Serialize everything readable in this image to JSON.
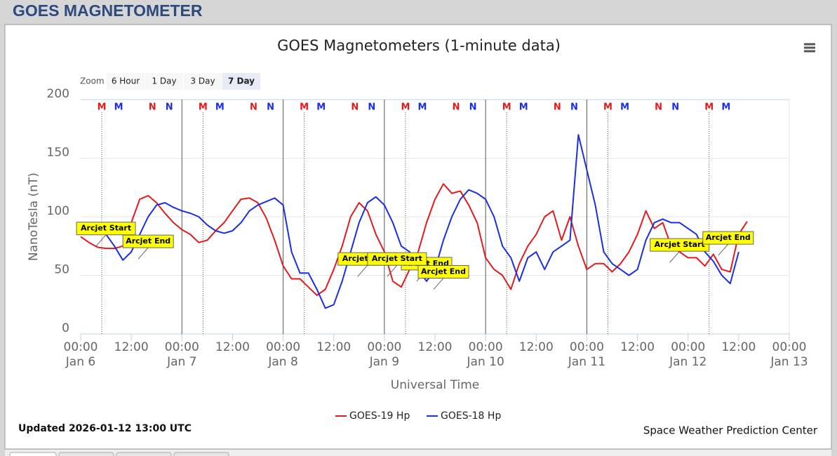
{
  "page": {
    "header": "GOES MAGNETOMETER",
    "zoom_label": "Zoom",
    "zoom_buttons": [
      "6 Hour",
      "1 Day",
      "3 Day",
      "7 Day"
    ],
    "zoom_selected": 3,
    "updated": "Updated 2026-01-12 13:00 UTC",
    "credit": "Space Weather Prediction Center"
  },
  "chart_data": {
    "type": "line",
    "title": "GOES Magnetometers (1-minute data)",
    "x_label": "Universal Time",
    "y_label": "NanoTesla (nT)",
    "xlim": [
      "Jan 6 00:00",
      "Jan 13 00:00"
    ],
    "xticks": [
      {
        "value": "Jan 6 00:00",
        "label": "00:00",
        "date": "Jan 6"
      },
      {
        "value": "Jan 6 12:00",
        "label": "12:00"
      },
      {
        "value": "Jan 7 00:00",
        "label": "00:00",
        "date": "Jan 7"
      },
      {
        "value": "Jan 7 12:00",
        "label": "12:00"
      },
      {
        "value": "Jan 8 00:00",
        "label": "00:00",
        "date": "Jan 8"
      },
      {
        "value": "Jan 8 12:00",
        "label": "12:00"
      },
      {
        "value": "Jan 9 00:00",
        "label": "00:00",
        "date": "Jan 9"
      },
      {
        "value": "Jan 9 12:00",
        "label": "12:00"
      },
      {
        "value": "Jan 10 00:00",
        "label": "00:00",
        "date": "Jan 10"
      },
      {
        "value": "Jan 10 12:00",
        "label": "12:00"
      },
      {
        "value": "Jan 11 00:00",
        "label": "00:00",
        "date": "Jan 11"
      },
      {
        "value": "Jan 11 12:00",
        "label": "12:00"
      },
      {
        "value": "Jan 12 00:00",
        "label": "00:00",
        "date": "Jan 12"
      },
      {
        "value": "Jan 12 12:00",
        "label": "12:00"
      },
      {
        "value": "Jan 13 00:00",
        "label": "00:00",
        "date": "Jan 13"
      }
    ],
    "ylim": [
      0,
      200
    ],
    "yticks": [
      0,
      50,
      100,
      150,
      200
    ],
    "grid": true,
    "plot_lines": [
      "Jan 7 00:00",
      "Jan 8 00:00",
      "Jan 9 00:00",
      "Jan 10 00:00",
      "Jan 11 00:00"
    ],
    "x": [
      "Jan 6 00:00",
      "Jan 6 02:00",
      "Jan 6 04:00",
      "Jan 6 06:00",
      "Jan 6 08:00",
      "Jan 6 10:00",
      "Jan 6 12:00",
      "Jan 6 14:00",
      "Jan 6 16:00",
      "Jan 6 18:00",
      "Jan 6 20:00",
      "Jan 6 22:00",
      "Jan 7 00:00",
      "Jan 7 02:00",
      "Jan 7 04:00",
      "Jan 7 06:00",
      "Jan 7 08:00",
      "Jan 7 10:00",
      "Jan 7 12:00",
      "Jan 7 14:00",
      "Jan 7 16:00",
      "Jan 7 18:00",
      "Jan 7 20:00",
      "Jan 7 22:00",
      "Jan 8 00:00",
      "Jan 8 02:00",
      "Jan 8 04:00",
      "Jan 8 06:00",
      "Jan 8 08:00",
      "Jan 8 10:00",
      "Jan 8 12:00",
      "Jan 8 14:00",
      "Jan 8 16:00",
      "Jan 8 18:00",
      "Jan 8 20:00",
      "Jan 8 22:00",
      "Jan 9 00:00",
      "Jan 9 02:00",
      "Jan 9 04:00",
      "Jan 9 06:00",
      "Jan 9 08:00",
      "Jan 9 10:00",
      "Jan 9 12:00",
      "Jan 9 14:00",
      "Jan 9 16:00",
      "Jan 9 18:00",
      "Jan 9 20:00",
      "Jan 9 22:00",
      "Jan 10 00:00",
      "Jan 10 02:00",
      "Jan 10 04:00",
      "Jan 10 06:00",
      "Jan 10 08:00",
      "Jan 10 10:00",
      "Jan 10 12:00",
      "Jan 10 14:00",
      "Jan 10 16:00",
      "Jan 10 18:00",
      "Jan 10 20:00",
      "Jan 10 22:00",
      "Jan 11 00:00",
      "Jan 11 02:00",
      "Jan 11 04:00",
      "Jan 11 06:00",
      "Jan 11 08:00",
      "Jan 11 10:00",
      "Jan 11 12:00",
      "Jan 11 14:00",
      "Jan 11 16:00",
      "Jan 11 18:00",
      "Jan 11 20:00",
      "Jan 11 22:00",
      "Jan 12 00:00",
      "Jan 12 02:00",
      "Jan 12 04:00",
      "Jan 12 06:00",
      "Jan 12 08:00",
      "Jan 12 10:00",
      "Jan 12 12:00",
      "Jan 12 14:00"
    ],
    "series": [
      {
        "name": "GOES-19 Hp",
        "color": "#e31a1c",
        "values": [
          83,
          78,
          74,
          73,
          73,
          75,
          95,
          115,
          118,
          112,
          103,
          95,
          89,
          85,
          78,
          80,
          88,
          95,
          105,
          115,
          116,
          112,
          99,
          80,
          58,
          47,
          47,
          40,
          33,
          38,
          55,
          75,
          100,
          112,
          105,
          85,
          70,
          45,
          40,
          55,
          70,
          95,
          115,
          128,
          120,
          122,
          110,
          95,
          65,
          55,
          50,
          38,
          60,
          75,
          85,
          100,
          105,
          80,
          100,
          75,
          55,
          60,
          60,
          53,
          60,
          70,
          85,
          105,
          90,
          95,
          75,
          70,
          65,
          65,
          58,
          68,
          55,
          53,
          85,
          96
        ]
      },
      {
        "name": "GOES-18 Hp",
        "color": "#1a2ee3",
        "values": [
          93,
          90,
          88,
          85,
          75,
          63,
          70,
          85,
          100,
          110,
          112,
          108,
          105,
          103,
          100,
          93,
          88,
          86,
          88,
          95,
          105,
          110,
          113,
          116,
          110,
          70,
          52,
          52,
          38,
          22,
          25,
          45,
          70,
          95,
          112,
          117,
          110,
          95,
          75,
          70,
          55,
          45,
          55,
          80,
          100,
          115,
          123,
          120,
          115,
          100,
          75,
          65,
          45,
          65,
          70,
          55,
          70,
          75,
          80,
          170,
          140,
          110,
          70,
          60,
          55,
          50,
          55,
          80,
          95,
          98,
          95,
          95,
          90,
          85,
          70,
          62,
          50,
          43,
          70,
          null
        ]
      }
    ],
    "markers": [
      {
        "label": "M",
        "color": "#e31a1c",
        "dotted": true,
        "x": [
          "Jan 6 05:00",
          "Jan 7 05:00",
          "Jan 8 05:00",
          "Jan 9 05:00",
          "Jan 10 05:00",
          "Jan 11 05:00",
          "Jan 12 05:00"
        ]
      },
      {
        "label": "M",
        "color": "#1a2ee3",
        "x": [
          "Jan 6 09:00",
          "Jan 7 09:00",
          "Jan 8 09:00",
          "Jan 9 09:00",
          "Jan 10 09:00",
          "Jan 11 09:00",
          "Jan 12 09:00"
        ]
      },
      {
        "label": "N",
        "color": "#e31a1c",
        "x": [
          "Jan 6 17:00",
          "Jan 7 17:00",
          "Jan 8 17:00",
          "Jan 9 17:00",
          "Jan 10 17:00",
          "Jan 11 17:00"
        ]
      },
      {
        "label": "N",
        "color": "#1a2ee3",
        "x": [
          "Jan 6 21:00",
          "Jan 7 21:00",
          "Jan 8 21:00",
          "Jan 9 21:00",
          "Jan 10 21:00",
          "Jan 11 21:00"
        ]
      }
    ],
    "annotations": [
      {
        "text": "Arcjet Start",
        "x": "Jan 6 06:00",
        "y": 81
      },
      {
        "text": "Arcjet End",
        "x": "Jan 6 16:00",
        "y": 70
      },
      {
        "text": "Arcjet Start",
        "x": "Jan 8 20:00",
        "y": 55
      },
      {
        "text": "Arcjet End",
        "x": "Jan 9 10:00",
        "y": 51
      },
      {
        "text": "Arcjet Start",
        "x": "Jan 9 03:00",
        "y": 55
      },
      {
        "text": "Arcjet End",
        "x": "Jan 9 14:00",
        "y": 44
      },
      {
        "text": "Arcjet Start",
        "x": "Jan 11 22:00",
        "y": 67
      },
      {
        "text": "Arcjet End",
        "x": "Jan 12 09:30",
        "y": 73
      }
    ]
  }
}
